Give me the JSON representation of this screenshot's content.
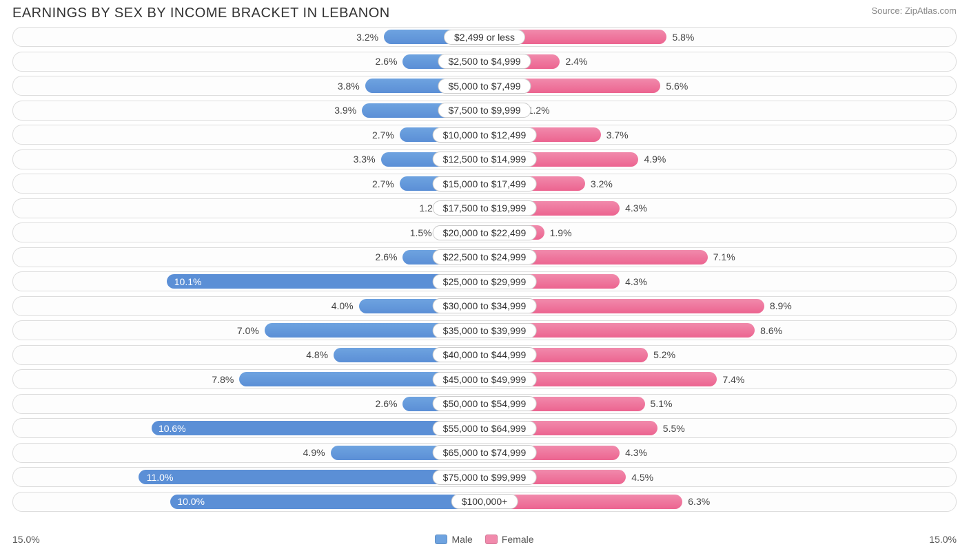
{
  "title": "EARNINGS BY SEX BY INCOME BRACKET IN LEBANON",
  "source": "Source: ZipAtlas.com",
  "axis_max_label": "15.0%",
  "legend": {
    "male": "Male",
    "female": "Female"
  },
  "chart": {
    "type": "diverging-bar",
    "max_value": 15.0,
    "background_color": "#ffffff",
    "row_border_color": "#dddddd",
    "row_background": "#fdfdfd",
    "label_pill_border": "#cccccc",
    "label_fontsize": 14,
    "title_fontsize": 20,
    "text_color": "#444444",
    "inside_text_color": "#ffffff",
    "male_fill": "#6ea3e0",
    "male_fill_highlight": "#5b8fd6",
    "female_fill": "#f18aac",
    "female_fill_highlight": "#ec6490",
    "inside_threshold": 9.5,
    "rows": [
      {
        "category": "$2,499 or less",
        "male": 3.2,
        "female": 5.8
      },
      {
        "category": "$2,500 to $4,999",
        "male": 2.6,
        "female": 2.4
      },
      {
        "category": "$5,000 to $7,499",
        "male": 3.8,
        "female": 5.6
      },
      {
        "category": "$7,500 to $9,999",
        "male": 3.9,
        "female": 1.2
      },
      {
        "category": "$10,000 to $12,499",
        "male": 2.7,
        "female": 3.7
      },
      {
        "category": "$12,500 to $14,999",
        "male": 3.3,
        "female": 4.9
      },
      {
        "category": "$15,000 to $17,499",
        "male": 2.7,
        "female": 3.2
      },
      {
        "category": "$17,500 to $19,999",
        "male": 1.2,
        "female": 4.3
      },
      {
        "category": "$20,000 to $22,499",
        "male": 1.5,
        "female": 1.9
      },
      {
        "category": "$22,500 to $24,999",
        "male": 2.6,
        "female": 7.1
      },
      {
        "category": "$25,000 to $29,999",
        "male": 10.1,
        "female": 4.3
      },
      {
        "category": "$30,000 to $34,999",
        "male": 4.0,
        "female": 8.9
      },
      {
        "category": "$35,000 to $39,999",
        "male": 7.0,
        "female": 8.6
      },
      {
        "category": "$40,000 to $44,999",
        "male": 4.8,
        "female": 5.2
      },
      {
        "category": "$45,000 to $49,999",
        "male": 7.8,
        "female": 7.4
      },
      {
        "category": "$50,000 to $54,999",
        "male": 2.6,
        "female": 5.1
      },
      {
        "category": "$55,000 to $64,999",
        "male": 10.6,
        "female": 5.5
      },
      {
        "category": "$65,000 to $74,999",
        "male": 4.9,
        "female": 4.3
      },
      {
        "category": "$75,000 to $99,999",
        "male": 11.0,
        "female": 4.5
      },
      {
        "category": "$100,000+",
        "male": 10.0,
        "female": 6.3
      }
    ]
  }
}
